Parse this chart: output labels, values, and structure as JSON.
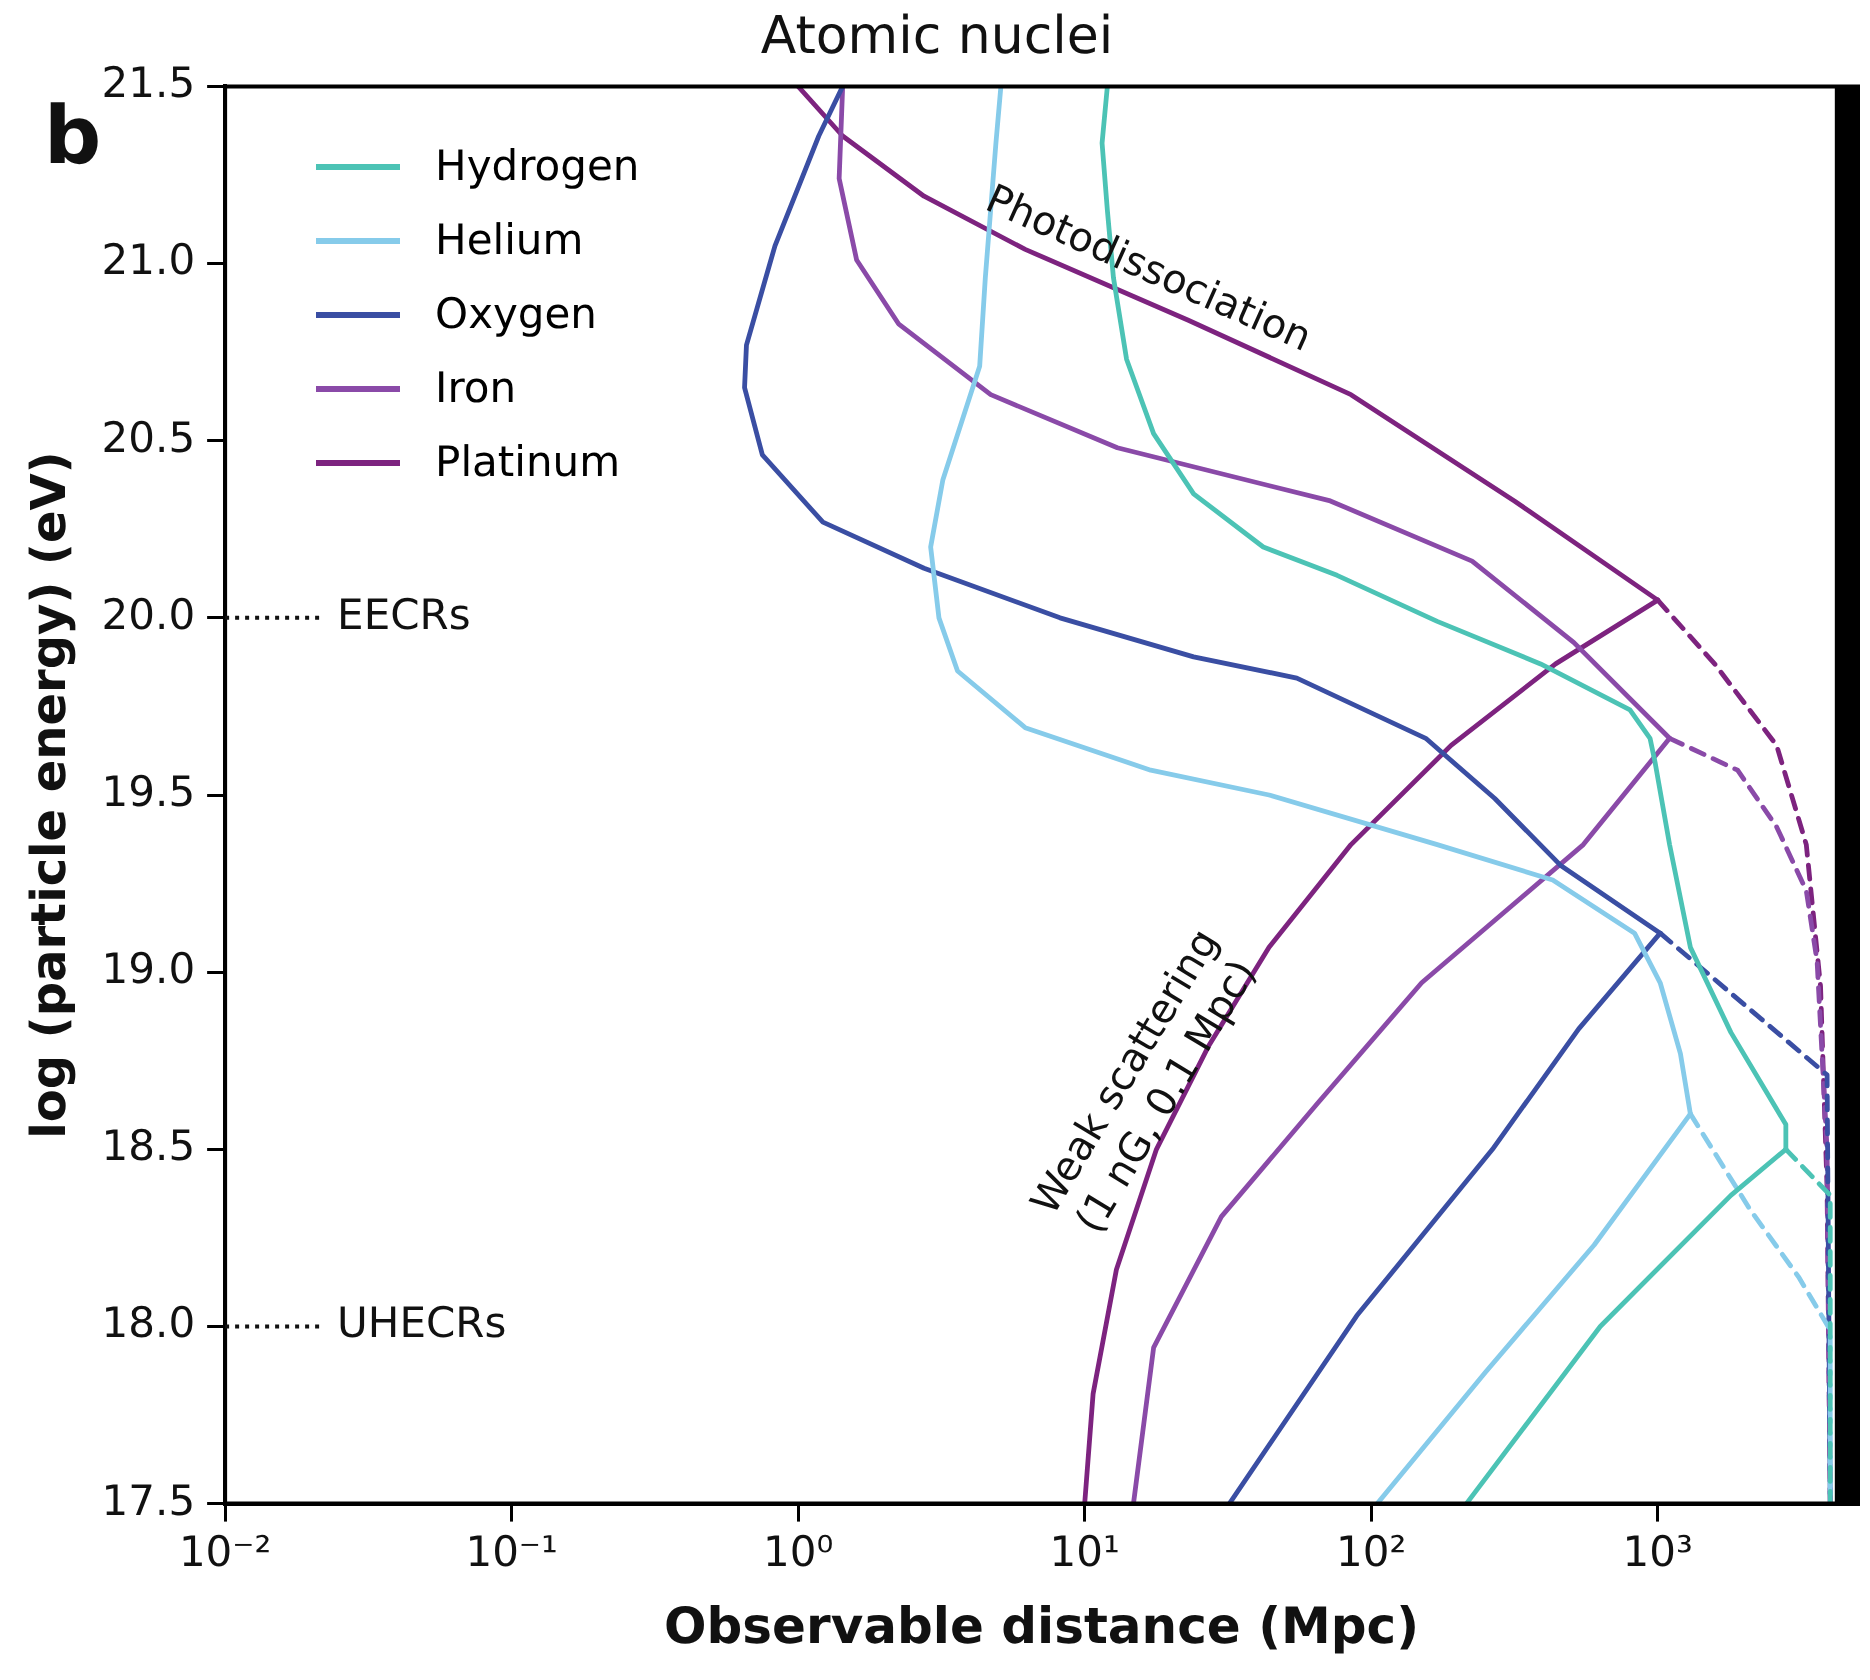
{
  "chart_data": {
    "type": "line",
    "title": "Atomic nuclei",
    "xlabel": "Observable distance (Mpc)",
    "ylabel": "log (particle energy) (eV)",
    "log": "x",
    "xlim": [
      0.01,
      5000
    ],
    "xticks": [
      {
        "value": 0.01,
        "label": "10⁻²"
      },
      {
        "value": 0.1,
        "label": "10⁻¹"
      },
      {
        "value": 1,
        "label": "10⁰"
      },
      {
        "value": 10,
        "label": "10¹"
      },
      {
        "value": 100,
        "label": "10²"
      },
      {
        "value": 1000,
        "label": "10³"
      }
    ],
    "ylim": [
      17.5,
      21.5
    ],
    "yticks": [
      17.5,
      {
        "value": 18,
        "label": "18.0"
      },
      18.5,
      {
        "value": 19,
        "label": "19.0"
      },
      19.5,
      {
        "value": 20,
        "label": "20.0"
      },
      20.5,
      {
        "value": 21,
        "label": "21.0"
      },
      21.5
    ],
    "grid": false,
    "legend": "top left",
    "bands": [
      {
        "axis": "x",
        "from": 4150,
        "to": 5000,
        "color": "#000000"
      }
    ],
    "annotations": [
      "b",
      "EECRs",
      "UHECRs",
      "Photodissociation",
      "Weak scattering\n(1 nG, 0.1 Mpc)"
    ],
    "series": [
      {
        "name": "Hydrogen",
        "color": "#4cc3b5",
        "x": [
          12,
          11.5,
          12,
          12.6,
          14,
          17.4,
          24,
          42,
          76,
          170,
          390,
          800,
          940,
          980,
          1100,
          1300,
          1800,
          2800,
          2800
        ],
        "values": [
          21.5,
          21.34,
          21.15,
          20.96,
          20.73,
          20.52,
          20.35,
          20.2,
          20.12,
          19.99,
          19.87,
          19.74,
          19.66,
          19.59,
          19.36,
          19.07,
          18.83,
          18.57,
          18.5
        ]
      },
      {
        "name": "Helium",
        "color": "#86cbea",
        "x": [
          5.1,
          4.9,
          4.5,
          4.3,
          3.2,
          2.9,
          3.1,
          3.6,
          6.2,
          17,
          44,
          170,
          430,
          830,
          1020,
          1200,
          1300
        ],
        "values": [
          21.5,
          21.34,
          20.96,
          20.71,
          20.39,
          20.2,
          20.0,
          19.85,
          19.69,
          19.57,
          19.5,
          19.36,
          19.26,
          19.11,
          18.97,
          18.77,
          18.6
        ]
      },
      {
        "name": "Oxygen",
        "color": "#3a4ea3",
        "x": [
          1.43,
          1.18,
          0.83,
          0.66,
          0.65,
          0.75,
          1.22,
          2.75,
          8.2,
          24,
          55,
          155,
          270,
          460,
          1020
        ],
        "values": [
          21.5,
          21.36,
          21.05,
          20.77,
          20.65,
          20.46,
          20.27,
          20.14,
          20.0,
          19.89,
          19.83,
          19.66,
          19.49,
          19.3,
          19.11
        ]
      },
      {
        "name": "Iron",
        "color": "#8a4aa8",
        "x": [
          1.43,
          1.39,
          1.6,
          2.24,
          4.7,
          13,
          72,
          225,
          510,
          1100
        ],
        "values": [
          21.5,
          21.24,
          21.01,
          20.83,
          20.63,
          20.48,
          20.33,
          20.16,
          19.93,
          19.66
        ]
      },
      {
        "name": "Platinum",
        "color": "#7d237f",
        "x": [
          1.0,
          1.43,
          2.75,
          6.2,
          23,
          85,
          316,
          1000
        ],
        "values": [
          21.5,
          21.36,
          21.19,
          21.04,
          20.84,
          20.63,
          20.33,
          20.05
        ]
      },
      {
        "color": "#4cc3b5",
        "x": [
          215,
          630,
          1800,
          2800
        ],
        "values": [
          17.5,
          18.0,
          18.37,
          18.5
        ]
      },
      {
        "color": "#86cbea",
        "x": [
          105,
          250,
          600,
          1300
        ],
        "values": [
          17.5,
          17.87,
          18.23,
          18.6
        ]
      },
      {
        "color": "#3a4ea3",
        "x": [
          32,
          89,
          265,
          530,
          1020
        ],
        "values": [
          17.5,
          18.03,
          18.5,
          18.84,
          19.11
        ]
      },
      {
        "color": "#8a4aa8",
        "x": [
          14.8,
          17.4,
          30,
          65,
          150,
          550,
          1100
        ],
        "values": [
          17.5,
          17.94,
          18.31,
          18.63,
          18.97,
          19.36,
          19.66
        ]
      },
      {
        "color": "#7d237f",
        "x": [
          10,
          10.7,
          12.9,
          17.8,
          27,
          44,
          85,
          190,
          440,
          1000
        ],
        "values": [
          17.5,
          17.81,
          18.16,
          18.5,
          18.79,
          19.07,
          19.36,
          19.64,
          19.87,
          20.05
        ]
      },
      {
        "color": "#4cc3b5",
        "line_style": "dashed",
        "x": [
          2800,
          4000,
          4000
        ],
        "values": [
          18.5,
          18.37,
          17.5
        ]
      },
      {
        "color": "#86cbea",
        "line_style": "dashed",
        "x": [
          1300,
          2100,
          3100,
          4000,
          4000
        ],
        "values": [
          18.6,
          18.33,
          18.14,
          17.99,
          17.5
        ]
      },
      {
        "color": "#3a4ea3",
        "line_style": "dashed",
        "x": [
          1020,
          3900,
          4000
        ],
        "values": [
          19.11,
          18.71,
          17.5
        ]
      },
      {
        "color": "#8a4aa8",
        "line_style": "dashed",
        "x": [
          1100,
          1900,
          2600,
          3300,
          3600,
          3900,
          4000
        ],
        "values": [
          19.66,
          19.57,
          19.41,
          19.23,
          19.03,
          18.5,
          17.5
        ]
      },
      {
        "color": "#7d237f",
        "line_style": "dashed",
        "x": [
          1000,
          1580,
          2600,
          3300,
          3700,
          3900,
          4000
        ],
        "values": [
          20.05,
          19.87,
          19.64,
          19.36,
          18.96,
          18.39,
          17.5
        ]
      }
    ]
  }
}
